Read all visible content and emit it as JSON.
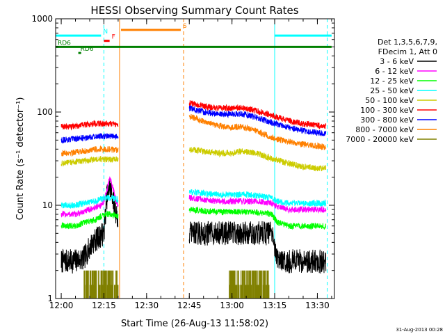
{
  "chart_data": {
    "type": "line",
    "title": "HESSI Observing Summary Count Rates",
    "xlabel": "Start Time (26-Aug-13 11:58:02)",
    "ylabel": "Count Rate (s⁻¹ detector⁻¹)",
    "y_scale": "log",
    "ylim": [
      1,
      1000
    ],
    "xlim": [
      "11:58:02",
      "13:36:00"
    ],
    "x_ticks": [
      "12:00",
      "12:15",
      "12:30",
      "12:45",
      "13:00",
      "13:15",
      "13:30"
    ],
    "y_ticks": [
      "1",
      "10",
      "100",
      "1000"
    ],
    "grid": false,
    "legend_position": "right",
    "legend_header": [
      "Det 1,3,5,6,7,9,",
      "FDecim 1, Att 0"
    ],
    "series": [
      {
        "name": "3 - 6 keV",
        "color": "#000000",
        "segments": [
          {
            "x": [
              "12:00",
              "12:04",
              "12:08",
              "12:11",
              "12:13",
              "12:15",
              "12:16",
              "12:17",
              "12:18",
              "12:19",
              "12:20"
            ],
            "y": [
              2.5,
              2.5,
              2.7,
              4,
              4.5,
              5,
              12,
              16,
              13,
              9,
              7
            ]
          },
          {
            "x": [
              "12:45",
              "12:50",
              "12:55",
              "13:00",
              "13:05",
              "13:10",
              "13:14",
              "13:16",
              "13:20",
              "13:25",
              "13:30",
              "13:33"
            ],
            "y": [
              5,
              5,
              5,
              5,
              5,
              5,
              5,
              2.5,
              2.5,
              2.5,
              2.5,
              2.5
            ]
          }
        ]
      },
      {
        "name": "6 - 12 keV",
        "color": "#ff00ff",
        "segments": [
          {
            "x": [
              "12:00",
              "12:05",
              "12:08",
              "12:10",
              "12:12",
              "12:14",
              "12:15",
              "12:16",
              "12:17",
              "12:18",
              "12:19",
              "12:20"
            ],
            "y": [
              8,
              8,
              8.5,
              9,
              9.5,
              10,
              11,
              14,
              20,
              16,
              12,
              10
            ]
          },
          {
            "x": [
              "12:45",
              "12:50",
              "12:55",
              "13:00",
              "13:05",
              "13:10",
              "13:14",
              "13:16",
              "13:20",
              "13:25",
              "13:30",
              "13:33"
            ],
            "y": [
              12,
              11.5,
              11,
              11,
              11,
              11,
              10.5,
              9.5,
              9,
              9,
              9,
              9
            ]
          }
        ]
      },
      {
        "name": "12 - 25 keV",
        "color": "#00ff00",
        "segments": [
          {
            "x": [
              "12:00",
              "12:05",
              "12:08",
              "12:12",
              "12:15",
              "12:18",
              "12:20"
            ],
            "y": [
              6,
              6,
              6.5,
              7,
              8,
              8,
              7.5
            ]
          },
          {
            "x": [
              "12:45",
              "12:50",
              "12:55",
              "13:00",
              "13:05",
              "13:10",
              "13:14",
              "13:16",
              "13:20",
              "13:25",
              "13:30",
              "13:33"
            ],
            "y": [
              9,
              8.7,
              8.5,
              8.5,
              8.5,
              8.3,
              8,
              6.5,
              6,
              6,
              6,
              6
            ]
          }
        ]
      },
      {
        "name": "25 - 50 keV",
        "color": "#00ffff",
        "segments": [
          {
            "x": [
              "12:00",
              "12:05",
              "12:08",
              "12:12",
              "12:15",
              "12:18",
              "12:20"
            ],
            "y": [
              10,
              10,
              10.5,
              11,
              12,
              12,
              11.5
            ]
          },
          {
            "x": [
              "12:45",
              "12:50",
              "12:55",
              "13:00",
              "13:05",
              "13:10",
              "13:14",
              "13:16",
              "13:20",
              "13:25",
              "13:30",
              "13:33"
            ],
            "y": [
              14,
              13.5,
              13,
              13,
              13,
              12.5,
              12,
              11,
              10.5,
              10.5,
              10.5,
              10.5
            ]
          }
        ]
      },
      {
        "name": "50 - 100 keV",
        "color": "#cccc00",
        "segments": [
          {
            "x": [
              "12:00",
              "12:04",
              "12:08",
              "12:12",
              "12:16",
              "12:20"
            ],
            "y": [
              28,
              29,
              30,
              31,
              31,
              31
            ]
          },
          {
            "x": [
              "12:45",
              "12:50",
              "12:55",
              "13:00",
              "13:03",
              "13:06",
              "13:10",
              "13:15",
              "13:20",
              "13:25",
              "13:30",
              "13:33"
            ],
            "y": [
              40,
              38,
              36,
              36,
              38,
              37,
              35,
              31,
              28,
              26,
              25,
              25
            ]
          }
        ]
      },
      {
        "name": "100 - 300 keV",
        "color": "#ff0000",
        "segments": [
          {
            "x": [
              "12:00",
              "12:04",
              "12:08",
              "12:12",
              "12:16",
              "12:20"
            ],
            "y": [
              70,
              70,
              73,
              75,
              75,
              74
            ]
          },
          {
            "x": [
              "12:45",
              "12:50",
              "12:55",
              "13:00",
              "13:03",
              "13:06",
              "13:10",
              "13:15",
              "13:20",
              "13:25",
              "13:30",
              "13:33"
            ],
            "y": [
              125,
              115,
              110,
              110,
              112,
              108,
              100,
              90,
              80,
              75,
              72,
              70
            ]
          }
        ]
      },
      {
        "name": "300 - 800 keV",
        "color": "#0000ff",
        "segments": [
          {
            "x": [
              "12:00",
              "12:04",
              "12:08",
              "12:12",
              "12:16",
              "12:20"
            ],
            "y": [
              50,
              51,
              53,
              55,
              55,
              54
            ]
          },
          {
            "x": [
              "12:45",
              "12:50",
              "12:55",
              "13:00",
              "13:03",
              "13:06",
              "13:10",
              "13:15",
              "13:20",
              "13:25",
              "13:30",
              "13:33"
            ],
            "y": [
              110,
              100,
              95,
              95,
              96,
              92,
              85,
              75,
              68,
              63,
              60,
              58
            ]
          }
        ]
      },
      {
        "name": "800 - 7000 keV",
        "color": "#ff8000",
        "segments": [
          {
            "x": [
              "12:00",
              "12:04",
              "12:08",
              "12:12",
              "12:16",
              "12:20"
            ],
            "y": [
              36,
              37,
              38,
              40,
              40,
              39
            ]
          },
          {
            "x": [
              "12:45",
              "12:50",
              "12:55",
              "13:00",
              "13:03",
              "13:06",
              "13:10",
              "13:15",
              "13:20",
              "13:25",
              "13:30",
              "13:33"
            ],
            "y": [
              90,
              80,
              72,
              68,
              70,
              66,
              60,
              52,
              48,
              45,
              43,
              42
            ]
          }
        ]
      },
      {
        "name": "7000 - 20000 keV",
        "color": "#808000",
        "segments": [
          {
            "x": [
              "12:08",
              "12:20"
            ],
            "y": [
              1.6,
              1.6
            ]
          },
          {
            "x": [
              "12:59",
              "13:13"
            ],
            "y": [
              1.6,
              1.6
            ]
          }
        ]
      }
    ],
    "flag_bars": [
      {
        "label": "N",
        "color": "#00ffff",
        "y": 660,
        "segments": [
          [
            "11:58:02",
            "12:14"
          ],
          [
            "13:15",
            "13:35"
          ]
        ]
      },
      {
        "label": "S",
        "color": "#ff8000",
        "y": 760,
        "segments": [
          [
            "12:21",
            "12:42"
          ]
        ]
      },
      {
        "label": "F",
        "color": "#ff0000",
        "y": 580,
        "segments": [
          [
            "12:15",
            "12:17"
          ]
        ]
      },
      {
        "label": "RD6",
        "color": "#008000",
        "y": 500,
        "segments": [
          [
            "11:58:02",
            "13:35"
          ]
        ]
      },
      {
        "label": "RD6",
        "color": "#008000",
        "y": 430,
        "segments": [
          [
            "12:06",
            "12:07"
          ]
        ]
      }
    ],
    "vertical_lines": [
      {
        "x": "12:15:00",
        "color": "#00ffff",
        "style": "dashed"
      },
      {
        "x": "12:20:30",
        "color": "#ff8000",
        "style": "solid"
      },
      {
        "x": "12:43:00",
        "color": "#ff8000",
        "style": "dashed"
      },
      {
        "x": "13:15:00",
        "color": "#00ffff",
        "style": "solid"
      },
      {
        "x": "13:33:30",
        "color": "#00ffff",
        "style": "dashed"
      }
    ],
    "footer_stamp": "31-Aug-2013 00:28"
  }
}
